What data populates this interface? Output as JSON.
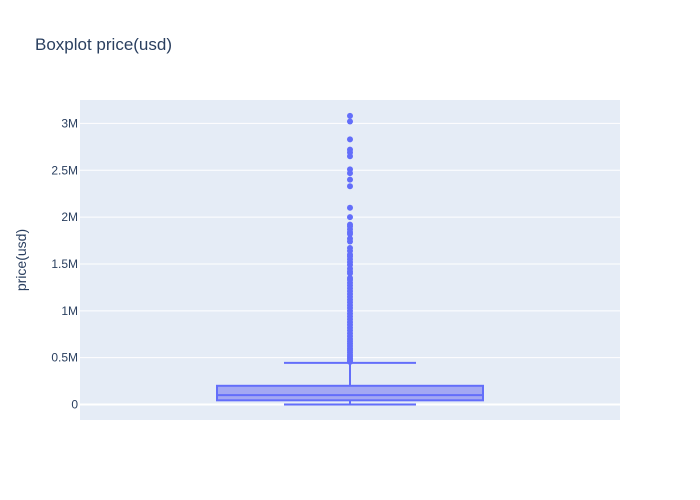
{
  "chart_data": {
    "type": "box",
    "title": "Boxplot price(usd)",
    "ylabel": "price(usd)",
    "xlabel": "",
    "ylim": [
      -165000,
      3250000
    ],
    "yticks": [
      {
        "value": 0,
        "label": "0"
      },
      {
        "value": 500000,
        "label": "0.5M"
      },
      {
        "value": 1000000,
        "label": "1M"
      },
      {
        "value": 1500000,
        "label": "1.5M"
      },
      {
        "value": 2000000,
        "label": "2M"
      },
      {
        "value": 2500000,
        "label": "2.5M"
      },
      {
        "value": 3000000,
        "label": "3M"
      }
    ],
    "grid": true,
    "colors": {
      "plot_bg": "#e5ecf6",
      "grid": "#ffffff",
      "box_fill": "#a3a8f3",
      "box_line": "#636efa",
      "outlier": "#636efa"
    },
    "box": {
      "min": 0,
      "q1": 45000,
      "median": 100000,
      "q3": 200000,
      "upper_fence": 445000
    },
    "outliers": [
      455000,
      470000,
      490000,
      510000,
      530000,
      555000,
      580000,
      600000,
      625000,
      650000,
      675000,
      700000,
      730000,
      760000,
      790000,
      820000,
      850000,
      880000,
      910000,
      940000,
      970000,
      1000000,
      1030000,
      1060000,
      1090000,
      1120000,
      1150000,
      1180000,
      1210000,
      1240000,
      1270000,
      1300000,
      1330000,
      1350000,
      1400000,
      1420000,
      1450000,
      1490000,
      1520000,
      1550000,
      1580000,
      1600000,
      1640000,
      1670000,
      1740000,
      1770000,
      1820000,
      1840000,
      1870000,
      1900000,
      1920000,
      2000000,
      2100000,
      2330000,
      2400000,
      2470000,
      2510000,
      2650000,
      2690000,
      2720000,
      2830000,
      3020000,
      3080000
    ]
  }
}
